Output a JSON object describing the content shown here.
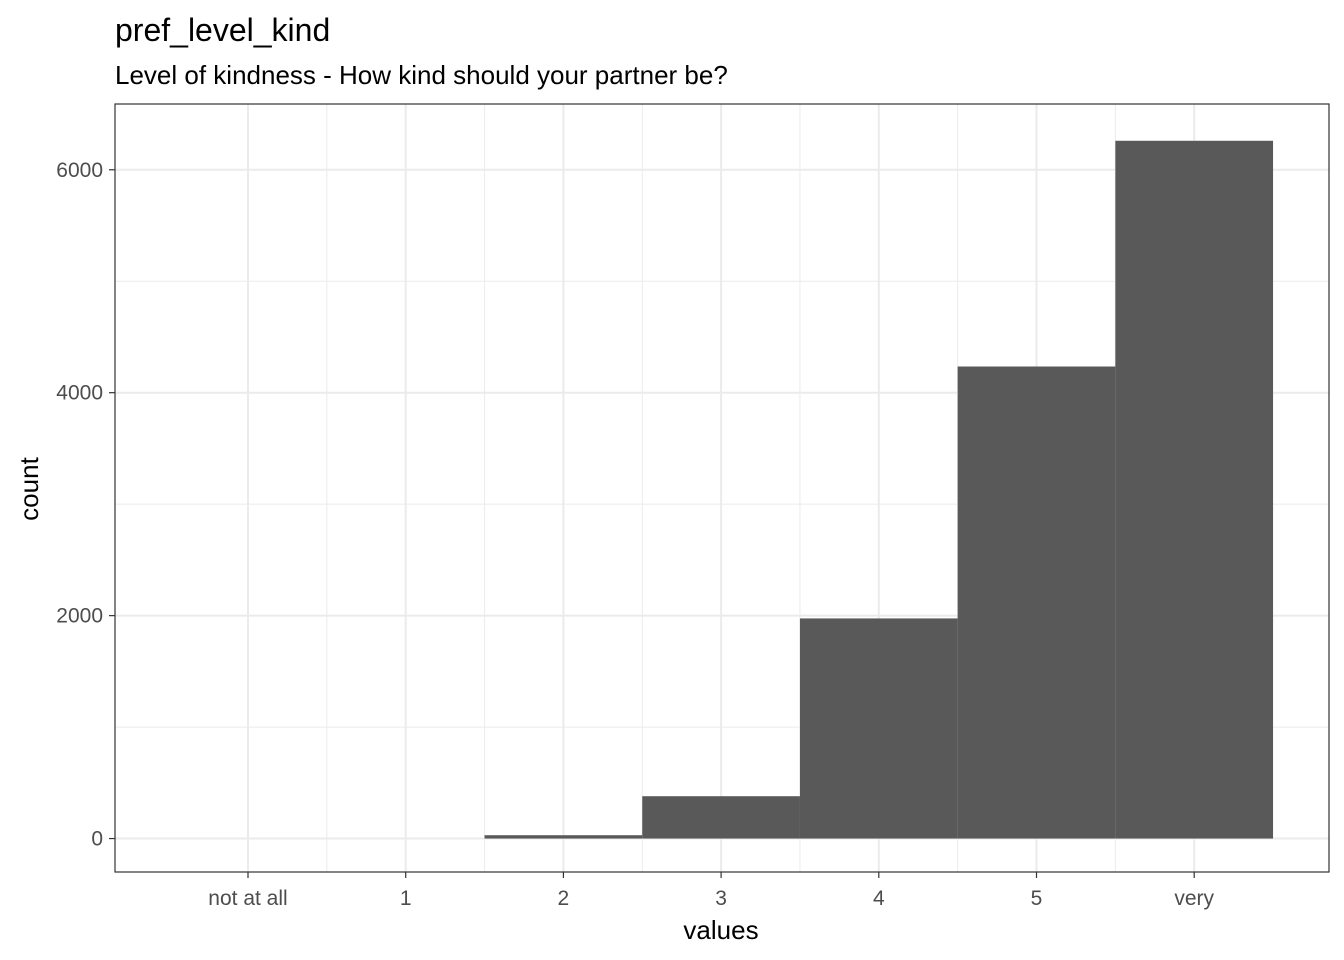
{
  "chart_data": {
    "type": "bar",
    "title": "pref_level_kind",
    "subtitle": "Level of kindness - How kind should your partner be?",
    "xlabel": "values",
    "ylabel": "count",
    "categories": [
      "not at all",
      "1",
      "2",
      "3",
      "4",
      "5",
      "very"
    ],
    "values": [
      0,
      0,
      30,
      380,
      1975,
      4235,
      6260
    ],
    "ylim": [
      -300,
      6590
    ],
    "y_ticks": [
      0,
      2000,
      4000,
      6000
    ],
    "y_tick_labels": [
      "0",
      "2000",
      "4000",
      "6000"
    ],
    "grid": true,
    "legend": "none",
    "colors": {
      "bar": "#595959",
      "grid": "#ebebeb",
      "panel_border": "#333333",
      "tick_label": "#4d4d4d"
    }
  }
}
